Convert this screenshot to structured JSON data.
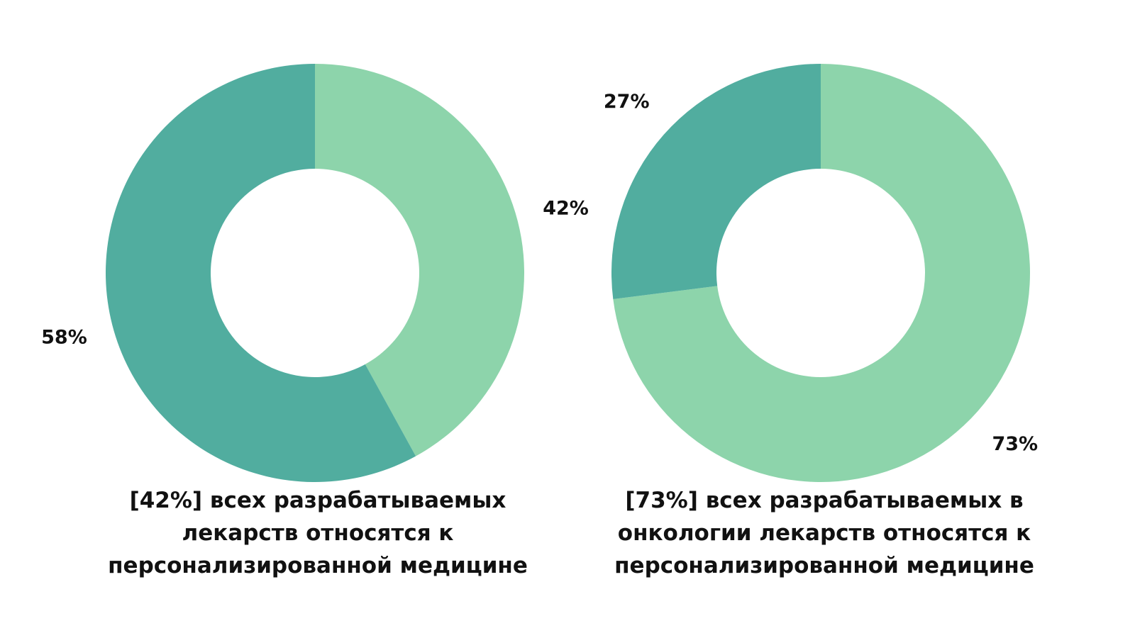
{
  "colors": {
    "light_green": "#8DD4AB",
    "teal": "#51AD9F",
    "background": "#FFFFFF",
    "text": "#111111"
  },
  "chart_data": [
    {
      "type": "pie",
      "variant": "donut",
      "slices": [
        {
          "label": "42%",
          "value": 42,
          "color": "#8DD4AB"
        },
        {
          "label": "58%",
          "value": 58,
          "color": "#51AD9F"
        }
      ],
      "caption_lines": [
        "[42%] всех разрабатываемых",
        "лекарств относятся к",
        "персонализированной медицине"
      ]
    },
    {
      "type": "pie",
      "variant": "donut",
      "slices": [
        {
          "label": "73%",
          "value": 73,
          "color": "#8DD4AB"
        },
        {
          "label": "27%",
          "value": 27,
          "color": "#51AD9F"
        }
      ],
      "caption_lines": [
        "[73%] всех разрабатываемых в",
        "онкологии лекарств относятся к",
        "персонализированной медицине"
      ]
    }
  ]
}
